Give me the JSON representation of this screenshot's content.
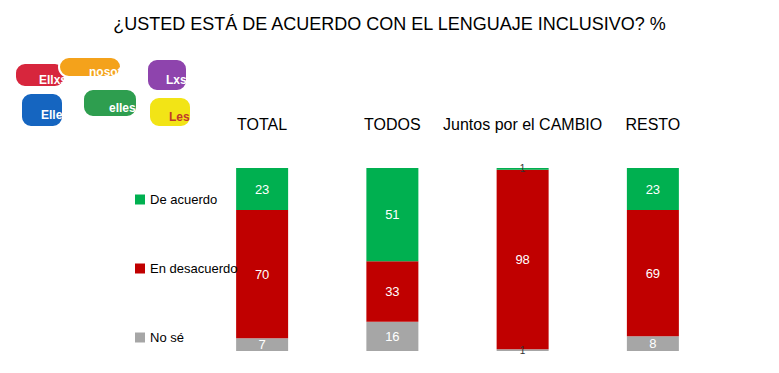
{
  "chart_data": {
    "type": "bar",
    "title": "¿USTED ESTÁ DE ACUERDO CON EL LENGUAJE INCLUSIVO? %",
    "categories": [
      "TOTAL",
      "TODOS",
      "Juntos por el CAMBIO",
      "RESTO"
    ],
    "series": [
      {
        "name": "De acuerdo",
        "color": "#00b050",
        "values": [
          23,
          51,
          1,
          23
        ]
      },
      {
        "name": "En desacuerdo",
        "color": "#c00000",
        "values": [
          70,
          33,
          98,
          69
        ]
      },
      {
        "name": "No sé",
        "color": "#a6a6a6",
        "values": [
          7,
          16,
          1,
          8
        ]
      }
    ],
    "annotations": [
      "Ellxs",
      "nosotres",
      "Lxs",
      "Elle",
      "elles",
      "Les"
    ],
    "ylim": [
      0,
      100
    ],
    "stacked": true,
    "data_labels": true,
    "tick_labels": "x",
    "grid": false,
    "legend": "left"
  }
}
